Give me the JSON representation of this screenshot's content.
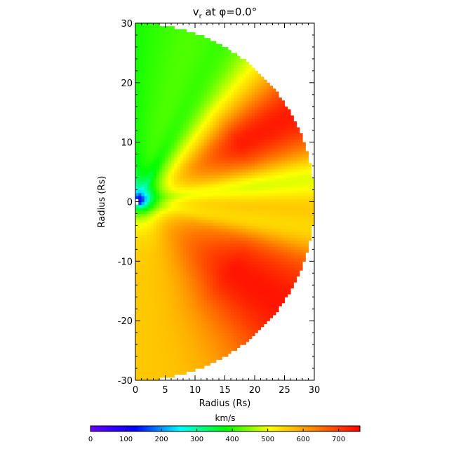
{
  "chart_data": {
    "type": "heatmap",
    "title": "v",
    "title_subscript": "r",
    "title_suffix": " at φ=0.0°",
    "xlabel": "Radius (Rs)",
    "ylabel": "Radius (Rs)",
    "xlim": [
      0,
      30
    ],
    "ylim": [
      -30,
      30
    ],
    "x_ticks": [
      0,
      5,
      10,
      15,
      20,
      25,
      30
    ],
    "y_ticks": [
      -30,
      -20,
      -10,
      0,
      10,
      20,
      30
    ],
    "domain": "half-disk, radius 30 Rs, right half-plane",
    "colorbar": {
      "label": "km/s",
      "range": [
        0,
        760
      ],
      "ticks": [
        0,
        100,
        200,
        300,
        400,
        500,
        600,
        700
      ],
      "colors": [
        "#6a00ff",
        "#0000ff",
        "#00ffff",
        "#00ff00",
        "#ffff00",
        "#ff8000",
        "#ff0000"
      ]
    },
    "structures": [
      {
        "name": "slow core near origin",
        "r": 2,
        "angle_deg": 0,
        "v": 30
      },
      {
        "name": "upper fast wind sector",
        "angle_range_deg": [
          10,
          45
        ],
        "v_peak": 730
      },
      {
        "name": "lower fast wind sector",
        "angle_range_deg": [
          -65,
          -12
        ],
        "v_peak": 690
      },
      {
        "name": "equatorial slow band",
        "angle_deg": 0,
        "v": 520
      },
      {
        "name": "polar upper band",
        "angle_deg": 85,
        "v": 340
      },
      {
        "name": "polar lower band",
        "angle_deg": -85,
        "v": 560
      }
    ]
  }
}
